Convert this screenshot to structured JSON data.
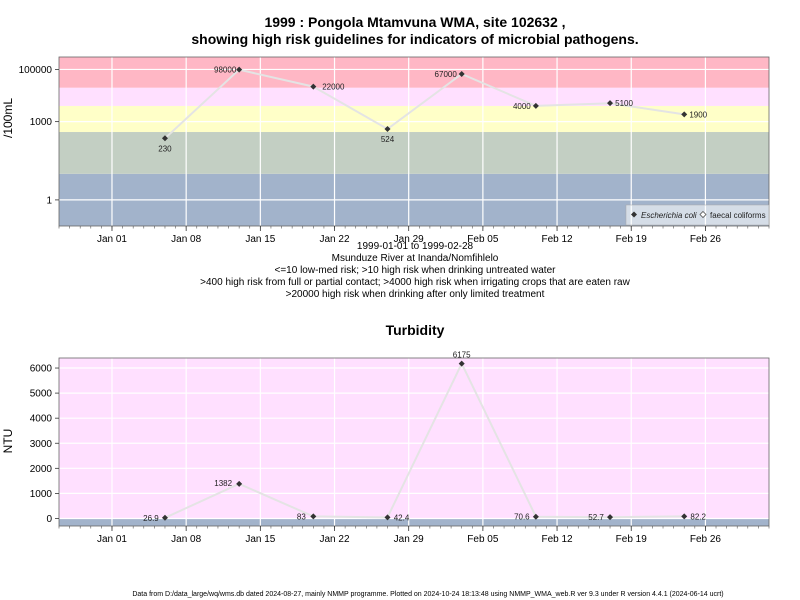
{
  "figure": {
    "footer": "Data from D:/data_large/wq/wms.db dated 2024-08-27, mainly NMMP programme. Plotted on 2024-10-24 18:13:48 using NMMP_WMA_web.R ver 9.3 under R version 4.4.1 (2024-06-14 ucrt)"
  },
  "chart_data": [
    {
      "type": "scatter",
      "title_line1": "1999 : Pongola Mtamvuna WMA, site 102632 ,",
      "title_line2": "showing high risk guidelines for indicators of microbial pathogens.",
      "ylabel": "/100mL",
      "xlabel": "",
      "y_scale": "log",
      "y_ticks": [
        1,
        1000,
        100000
      ],
      "y_tick_labels": [
        "1",
        "1000",
        "100000"
      ],
      "x_range": [
        "1998-12-27",
        "1999-03-04"
      ],
      "x_ticks": [
        "1999-01-01",
        "1999-01-08",
        "1999-01-15",
        "1999-01-22",
        "1999-01-29",
        "1999-02-05",
        "1999-02-12",
        "1999-02-19",
        "1999-02-26"
      ],
      "x_tick_labels": [
        "Jan 01",
        "Jan 08",
        "Jan 15",
        "Jan 22",
        "Jan 29",
        "Feb 05",
        "Feb 12",
        "Feb 19",
        "Feb 26"
      ],
      "grid": true,
      "legend_position": "bottom-right",
      "bands": [
        {
          "from": 0.1,
          "to": 10,
          "color": "#a2b3cb"
        },
        {
          "from": 10,
          "to": 400,
          "color": "#c3cfc3"
        },
        {
          "from": 400,
          "to": 4000,
          "color": "#ffffc8"
        },
        {
          "from": 4000,
          "to": 20000,
          "color": "#ffe0ff"
        },
        {
          "from": 20000,
          "to": 300000,
          "color": "#ffb7c5"
        }
      ],
      "series": [
        {
          "name": "Escherichia coli",
          "marker": "filled-diamond",
          "x": [
            "1999-01-06",
            "1999-01-13",
            "1999-01-20",
            "1999-01-27",
            "1999-02-03",
            "1999-02-10",
            "1999-02-17",
            "1999-02-24"
          ],
          "y": [
            230,
            98000,
            22000,
            524,
            67000,
            4000,
            5100,
            1900
          ],
          "labels": [
            "230",
            "98000",
            "22000",
            "524",
            "67000",
            "4000",
            "5100",
            "1900"
          ]
        },
        {
          "name": "faecal coliforms",
          "marker": "open-diamond",
          "x": [],
          "y": []
        }
      ],
      "caption": [
        "1999-01-01 to 1999-02-28",
        "Msunduze River at Inanda/Nomfihlelo",
        "<=10 low-med risk; >10 high risk when drinking untreated water",
        ">400 high risk from full or partial contact; >4000 high risk when irrigating crops that are eaten raw",
        ">20000 high risk when drinking after only limited treatment"
      ],
      "colors": {
        "line": "#e4e4e4",
        "marker": "#333333",
        "grid": "#ffffff"
      }
    },
    {
      "type": "scatter",
      "title": "Turbidity",
      "ylabel": "NTU",
      "xlabel": "",
      "y_scale": "linear",
      "ylim": [
        -300,
        6400
      ],
      "y_ticks": [
        0,
        1000,
        2000,
        3000,
        4000,
        5000,
        6000
      ],
      "y_tick_labels": [
        "0",
        "1000",
        "2000",
        "3000",
        "4000",
        "5000",
        "6000"
      ],
      "x_range": [
        "1998-12-27",
        "1999-03-04"
      ],
      "x_ticks": [
        "1999-01-01",
        "1999-01-08",
        "1999-01-15",
        "1999-01-22",
        "1999-01-29",
        "1999-02-05",
        "1999-02-12",
        "1999-02-19",
        "1999-02-26"
      ],
      "x_tick_labels": [
        "Jan 01",
        "Jan 08",
        "Jan 15",
        "Jan 22",
        "Jan 29",
        "Feb 05",
        "Feb 12",
        "Feb 19",
        "Feb 26"
      ],
      "grid": true,
      "bands": [
        {
          "from": -300,
          "to": 0,
          "color": "#a2b3cb"
        },
        {
          "from": 0,
          "to": 6400,
          "color": "#ffe0ff"
        }
      ],
      "series": [
        {
          "x": [
            "1999-01-06",
            "1999-01-13",
            "1999-01-20",
            "1999-01-27",
            "1999-02-03",
            "1999-02-10",
            "1999-02-17",
            "1999-02-24"
          ],
          "y": [
            26.9,
            1382,
            83,
            42.4,
            6175,
            70.6,
            52.7,
            82.2
          ],
          "labels": [
            "26.9",
            "1382",
            "83",
            "42.4",
            "6175",
            "70.6",
            "52.7",
            "82.2"
          ]
        }
      ],
      "colors": {
        "line": "#e4e4e4",
        "marker": "#333333",
        "grid": "#ffffff"
      }
    }
  ]
}
